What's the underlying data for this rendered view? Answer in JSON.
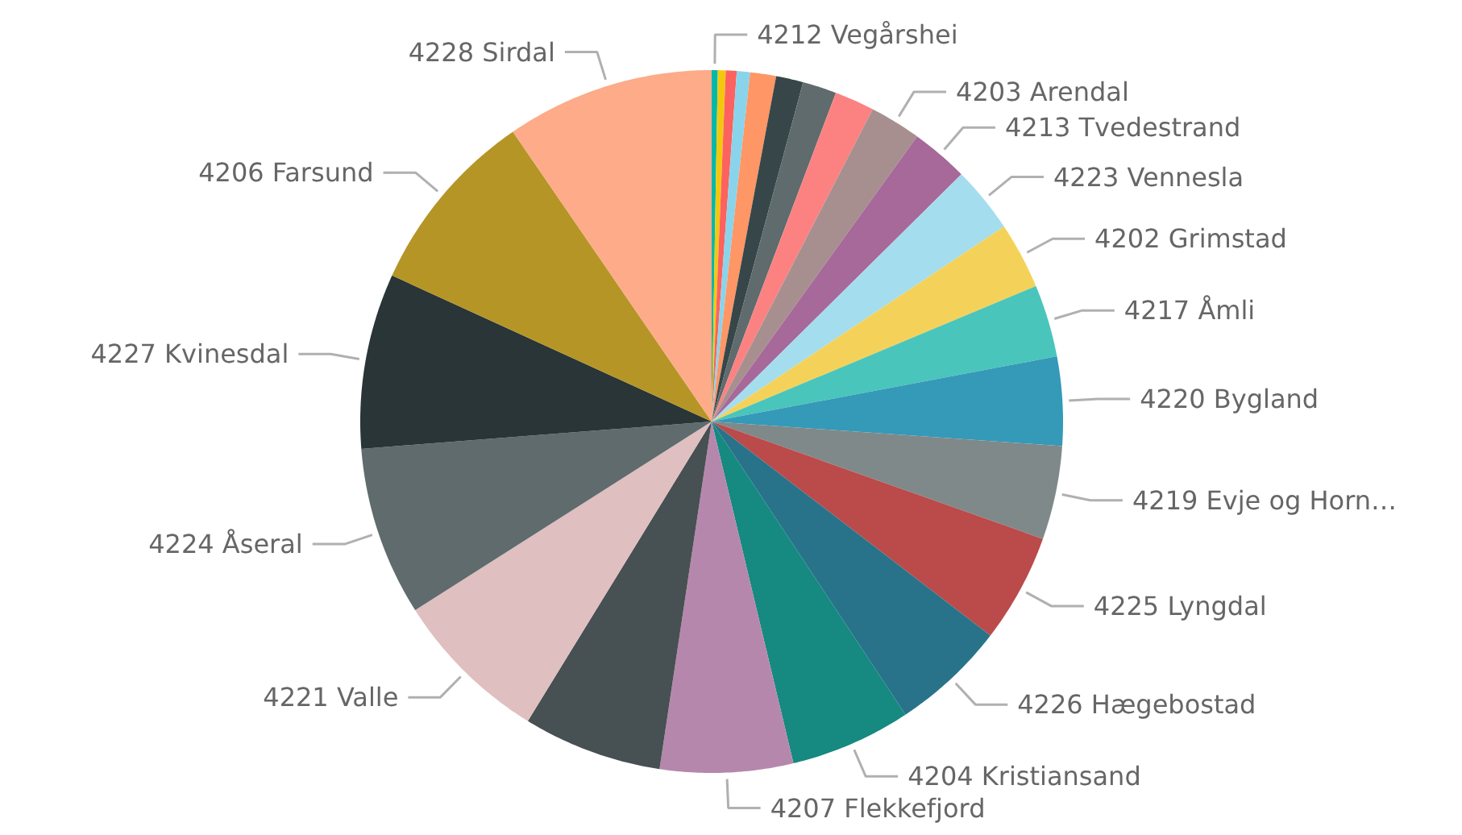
{
  "chart_data": {
    "type": "pie",
    "categories": [
      "4212 Vegårshei",
      null,
      null,
      null,
      null,
      null,
      null,
      null,
      "4203 Arendal",
      "4213 Tvedestrand",
      "4223 Vennesla",
      "4202 Grimstad",
      "4217 Åmli",
      "4220 Bygland",
      "4219 Evje og Horn…",
      "4225 Lyngdal",
      "4226 Hægebostad",
      "4204 Kristiansand",
      "4207 Flekkefjord",
      null,
      "4221 Valle",
      "4224 Åseral",
      "4227 Kvinesdal",
      "4206 Farsund",
      "4228 Sirdal"
    ],
    "values": [
      0.28,
      0.36,
      0.5,
      0.61,
      1.19,
      1.25,
      1.56,
      1.83,
      2.36,
      2.64,
      3.06,
      3.06,
      3.33,
      4.08,
      4.31,
      5.0,
      5.28,
      5.56,
      6.11,
      6.39,
      7.22,
      7.78,
      8.06,
      8.61,
      9.57
    ],
    "colors": [
      "#01B8AA",
      "#F2C80F",
      "#FD625E",
      "#8AD4EB",
      "#FE9666",
      "#374649",
      "#5F6B6D",
      "#FB8281",
      "#A78F8F",
      "#A66999",
      "#A4DDEE",
      "#F4D25A",
      "#4AC5BB",
      "#3599B8",
      "#7F898A",
      "#BB4A4A",
      "#28738A",
      "#168980",
      "#B687AC",
      "#475052",
      "#DFBFBF",
      "#5F6B6D",
      "#293537",
      "#B59525",
      "#FDAB89"
    ],
    "legend_title": null
  }
}
